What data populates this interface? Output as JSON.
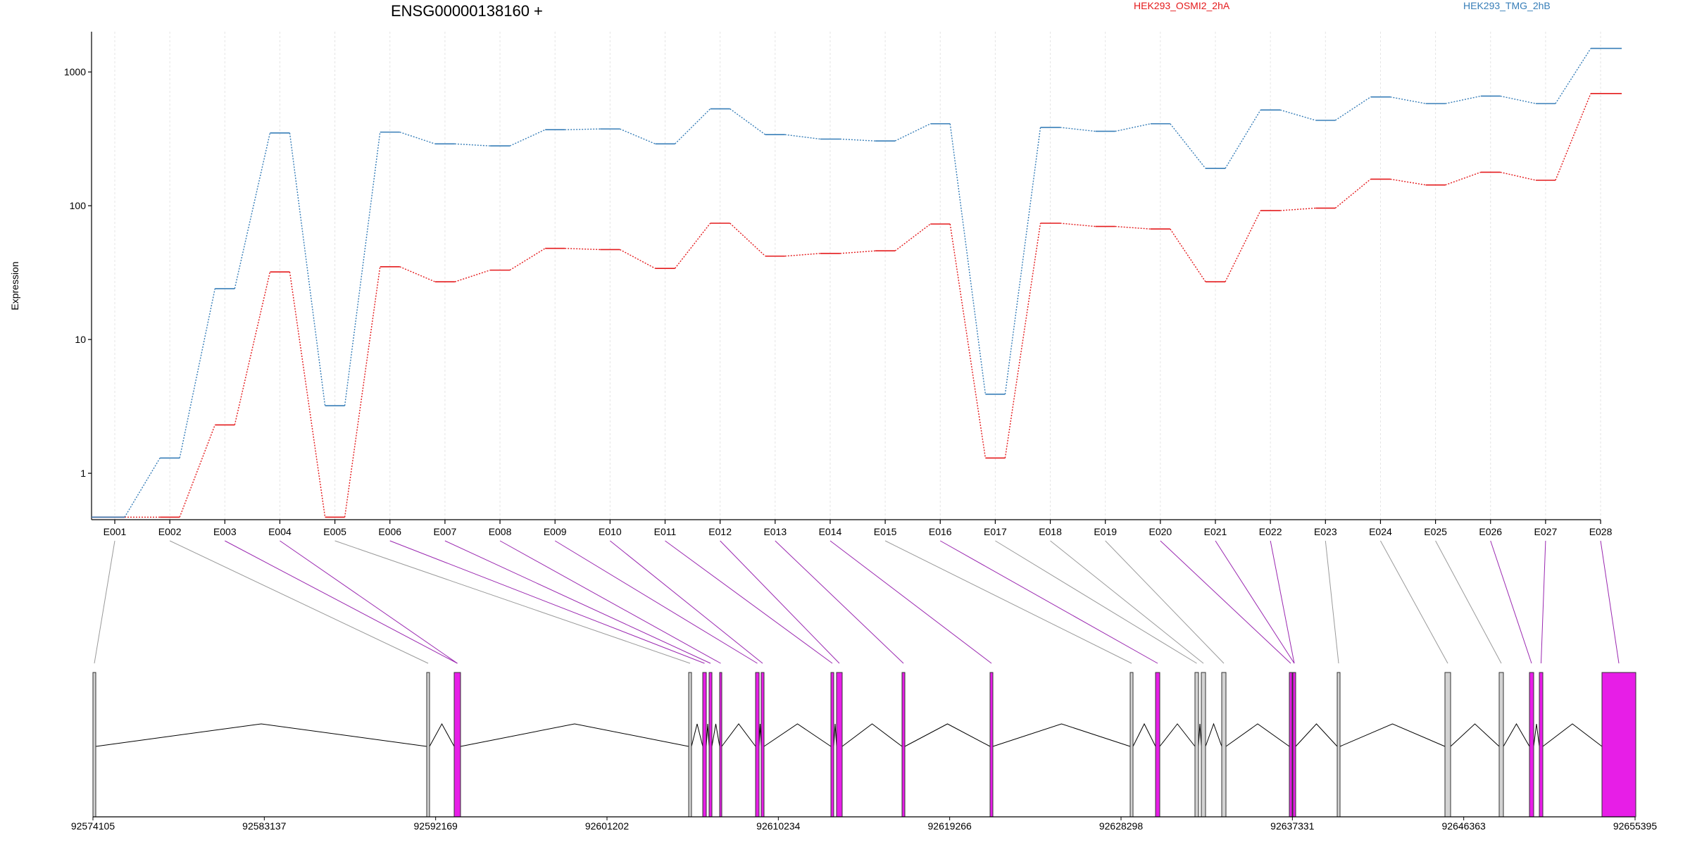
{
  "chart_data": {
    "type": "line",
    "title": "ENSG00000138160 +",
    "ylabel": "Expression",
    "xlabel": "",
    "yscale": "log",
    "ylim": [
      0.45,
      2000
    ],
    "yticks": [
      1,
      10,
      100,
      1000
    ],
    "ytick_labels": [
      "1",
      "10",
      "100",
      "1000"
    ],
    "grid": "vertical-dashed",
    "legend_placement": "top",
    "categories": [
      "E001",
      "E002",
      "E003",
      "E004",
      "E005",
      "E006",
      "E007",
      "E008",
      "E009",
      "E010",
      "E011",
      "E012",
      "E013",
      "E014",
      "E015",
      "E016",
      "E017",
      "E018",
      "E019",
      "E020",
      "E021",
      "E022",
      "E023",
      "E024",
      "E025",
      "E026",
      "E027",
      "E028"
    ],
    "series": [
      {
        "name": "HEK293_OSMI2_2hA",
        "color": "#e41a1c",
        "values": [
          0.47,
          0.47,
          2.3,
          32,
          0.47,
          35,
          27,
          33,
          48,
          47,
          34,
          74,
          42,
          44,
          46,
          73,
          1.3,
          74,
          70,
          67,
          27,
          92,
          96,
          158,
          143,
          178,
          155,
          690
        ]
      },
      {
        "name": "HEK293_TMG_2hB",
        "color": "#377eb8",
        "values": [
          0.47,
          1.3,
          24,
          350,
          3.2,
          355,
          290,
          280,
          370,
          375,
          290,
          530,
          340,
          315,
          305,
          410,
          3.9,
          385,
          360,
          410,
          190,
          520,
          435,
          650,
          580,
          660,
          580,
          1500
        ]
      }
    ],
    "exon_track": {
      "genomic_ticks": [
        "92574105",
        "92583137",
        "92592169",
        "92601202",
        "92610234",
        "92619266",
        "92628298",
        "92637331",
        "92646363",
        "92655395"
      ],
      "exon_fill_colors": {
        "sig": "#e71ee7",
        "nonsig": "#d3d3d3"
      },
      "line_colors": {
        "sig": "#9a27b0",
        "nonsig": "#9a9a9a"
      }
    }
  }
}
